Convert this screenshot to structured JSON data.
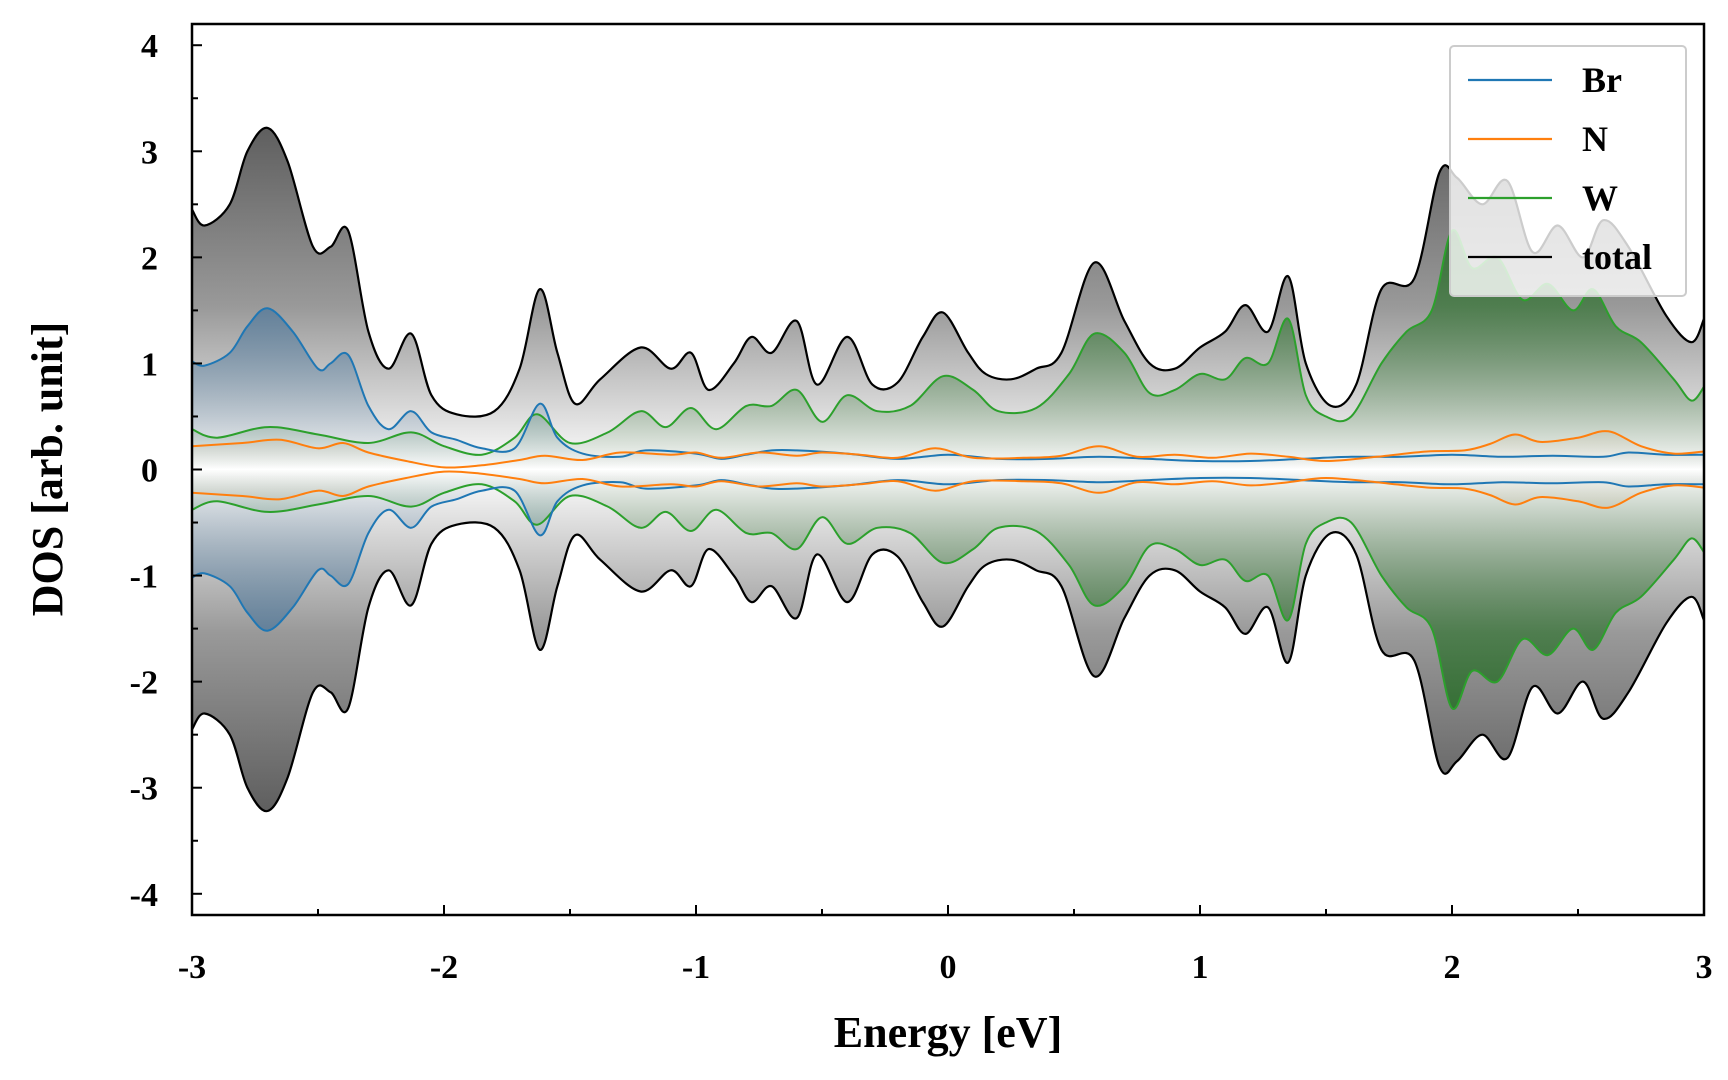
{
  "chart_data": {
    "type": "area",
    "title": "",
    "xlabel": "Energy [eV]",
    "ylabel": "DOS [arb. unit]",
    "xlim": [
      -3,
      3
    ],
    "ylim": [
      -4.2,
      4.2
    ],
    "x_ticks": [
      -3,
      -2,
      -1,
      0,
      1,
      2,
      3
    ],
    "x_tick_labels": [
      "-3",
      "-2",
      "-1",
      "0",
      "1",
      "2",
      "3"
    ],
    "y_ticks": [
      -4,
      -3,
      -2,
      -1,
      0,
      1,
      2,
      3,
      4
    ],
    "y_tick_labels": [
      "-4",
      "-3",
      "-2",
      "-1",
      "0",
      "1",
      "2",
      "3",
      "4"
    ],
    "legend_position": "top-right",
    "symmetric": true,
    "note": "Spin-down curve is the negative mirror of the spin-up curve.",
    "series": [
      {
        "name": "total",
        "color": "#000000",
        "fill": "grey",
        "points": [
          [
            -3.0,
            2.45
          ],
          [
            -2.95,
            2.3
          ],
          [
            -2.85,
            2.5
          ],
          [
            -2.78,
            3.0
          ],
          [
            -2.7,
            3.22
          ],
          [
            -2.62,
            2.9
          ],
          [
            -2.52,
            2.1
          ],
          [
            -2.45,
            2.1
          ],
          [
            -2.38,
            2.25
          ],
          [
            -2.3,
            1.3
          ],
          [
            -2.22,
            0.95
          ],
          [
            -2.13,
            1.28
          ],
          [
            -2.05,
            0.7
          ],
          [
            -1.95,
            0.52
          ],
          [
            -1.8,
            0.55
          ],
          [
            -1.7,
            0.95
          ],
          [
            -1.62,
            1.7
          ],
          [
            -1.55,
            1.1
          ],
          [
            -1.48,
            0.62
          ],
          [
            -1.38,
            0.85
          ],
          [
            -1.22,
            1.15
          ],
          [
            -1.1,
            0.95
          ],
          [
            -1.02,
            1.1
          ],
          [
            -0.95,
            0.75
          ],
          [
            -0.85,
            1.0
          ],
          [
            -0.78,
            1.25
          ],
          [
            -0.7,
            1.1
          ],
          [
            -0.6,
            1.4
          ],
          [
            -0.52,
            0.8
          ],
          [
            -0.4,
            1.25
          ],
          [
            -0.3,
            0.8
          ],
          [
            -0.2,
            0.82
          ],
          [
            -0.1,
            1.25
          ],
          [
            -0.02,
            1.48
          ],
          [
            0.08,
            1.1
          ],
          [
            0.15,
            0.9
          ],
          [
            0.25,
            0.85
          ],
          [
            0.35,
            0.95
          ],
          [
            0.45,
            1.1
          ],
          [
            0.58,
            1.95
          ],
          [
            0.7,
            1.4
          ],
          [
            0.8,
            1.0
          ],
          [
            0.9,
            0.95
          ],
          [
            1.0,
            1.15
          ],
          [
            1.1,
            1.3
          ],
          [
            1.18,
            1.55
          ],
          [
            1.27,
            1.3
          ],
          [
            1.35,
            1.82
          ],
          [
            1.42,
            1.0
          ],
          [
            1.52,
            0.6
          ],
          [
            1.62,
            0.8
          ],
          [
            1.72,
            1.7
          ],
          [
            1.85,
            1.8
          ],
          [
            1.95,
            2.8
          ],
          [
            2.02,
            2.75
          ],
          [
            2.12,
            2.5
          ],
          [
            2.22,
            2.72
          ],
          [
            2.32,
            2.05
          ],
          [
            2.42,
            2.3
          ],
          [
            2.52,
            2.0
          ],
          [
            2.6,
            2.35
          ],
          [
            2.7,
            2.1
          ],
          [
            2.85,
            1.45
          ],
          [
            2.95,
            1.2
          ],
          [
            3.0,
            1.42
          ]
        ]
      },
      {
        "name": "W",
        "color": "#2ca02c",
        "fill": "green",
        "points": [
          [
            -3.0,
            0.38
          ],
          [
            -2.9,
            0.3
          ],
          [
            -2.7,
            0.4
          ],
          [
            -2.5,
            0.33
          ],
          [
            -2.3,
            0.25
          ],
          [
            -2.13,
            0.35
          ],
          [
            -2.0,
            0.22
          ],
          [
            -1.85,
            0.14
          ],
          [
            -1.72,
            0.3
          ],
          [
            -1.63,
            0.52
          ],
          [
            -1.5,
            0.25
          ],
          [
            -1.35,
            0.35
          ],
          [
            -1.22,
            0.55
          ],
          [
            -1.12,
            0.4
          ],
          [
            -1.02,
            0.58
          ],
          [
            -0.92,
            0.38
          ],
          [
            -0.8,
            0.6
          ],
          [
            -0.7,
            0.6
          ],
          [
            -0.6,
            0.75
          ],
          [
            -0.5,
            0.45
          ],
          [
            -0.4,
            0.7
          ],
          [
            -0.28,
            0.55
          ],
          [
            -0.15,
            0.6
          ],
          [
            -0.02,
            0.88
          ],
          [
            0.1,
            0.75
          ],
          [
            0.2,
            0.55
          ],
          [
            0.35,
            0.58
          ],
          [
            0.48,
            0.9
          ],
          [
            0.58,
            1.28
          ],
          [
            0.7,
            1.1
          ],
          [
            0.8,
            0.72
          ],
          [
            0.9,
            0.75
          ],
          [
            1.0,
            0.9
          ],
          [
            1.1,
            0.85
          ],
          [
            1.18,
            1.05
          ],
          [
            1.27,
            1.0
          ],
          [
            1.35,
            1.42
          ],
          [
            1.42,
            0.7
          ],
          [
            1.5,
            0.5
          ],
          [
            1.6,
            0.5
          ],
          [
            1.72,
            1.0
          ],
          [
            1.82,
            1.3
          ],
          [
            1.92,
            1.5
          ],
          [
            2.0,
            2.25
          ],
          [
            2.08,
            1.9
          ],
          [
            2.18,
            2.0
          ],
          [
            2.28,
            1.6
          ],
          [
            2.38,
            1.75
          ],
          [
            2.48,
            1.5
          ],
          [
            2.56,
            1.7
          ],
          [
            2.65,
            1.35
          ],
          [
            2.75,
            1.2
          ],
          [
            2.88,
            0.85
          ],
          [
            2.95,
            0.65
          ],
          [
            3.0,
            0.78
          ]
        ]
      },
      {
        "name": "Br",
        "color": "#1f77b4",
        "fill": "blue",
        "points": [
          [
            -3.0,
            1.02
          ],
          [
            -2.95,
            0.98
          ],
          [
            -2.85,
            1.1
          ],
          [
            -2.78,
            1.35
          ],
          [
            -2.7,
            1.52
          ],
          [
            -2.6,
            1.3
          ],
          [
            -2.5,
            0.95
          ],
          [
            -2.45,
            1.0
          ],
          [
            -2.38,
            1.08
          ],
          [
            -2.3,
            0.6
          ],
          [
            -2.22,
            0.38
          ],
          [
            -2.13,
            0.55
          ],
          [
            -2.05,
            0.35
          ],
          [
            -1.95,
            0.28
          ],
          [
            -1.85,
            0.2
          ],
          [
            -1.72,
            0.2
          ],
          [
            -1.62,
            0.62
          ],
          [
            -1.55,
            0.3
          ],
          [
            -1.45,
            0.15
          ],
          [
            -1.3,
            0.12
          ],
          [
            -1.2,
            0.18
          ],
          [
            -1.0,
            0.15
          ],
          [
            -0.9,
            0.1
          ],
          [
            -0.8,
            0.14
          ],
          [
            -0.7,
            0.18
          ],
          [
            -0.6,
            0.18
          ],
          [
            -0.4,
            0.15
          ],
          [
            -0.2,
            0.1
          ],
          [
            0.0,
            0.14
          ],
          [
            0.2,
            0.1
          ],
          [
            0.4,
            0.1
          ],
          [
            0.6,
            0.12
          ],
          [
            0.8,
            0.1
          ],
          [
            1.0,
            0.08
          ],
          [
            1.2,
            0.08
          ],
          [
            1.4,
            0.1
          ],
          [
            1.6,
            0.12
          ],
          [
            1.8,
            0.12
          ],
          [
            2.0,
            0.14
          ],
          [
            2.2,
            0.12
          ],
          [
            2.4,
            0.13
          ],
          [
            2.6,
            0.12
          ],
          [
            2.7,
            0.16
          ],
          [
            2.85,
            0.14
          ],
          [
            3.0,
            0.14
          ]
        ]
      },
      {
        "name": "N",
        "color": "#ff7f0e",
        "fill": "tan",
        "points": [
          [
            -3.0,
            0.22
          ],
          [
            -2.8,
            0.25
          ],
          [
            -2.65,
            0.28
          ],
          [
            -2.5,
            0.2
          ],
          [
            -2.4,
            0.25
          ],
          [
            -2.3,
            0.16
          ],
          [
            -2.15,
            0.08
          ],
          [
            -2.0,
            0.02
          ],
          [
            -1.85,
            0.04
          ],
          [
            -1.7,
            0.09
          ],
          [
            -1.6,
            0.13
          ],
          [
            -1.45,
            0.09
          ],
          [
            -1.3,
            0.16
          ],
          [
            -1.1,
            0.14
          ],
          [
            -1.0,
            0.16
          ],
          [
            -0.9,
            0.11
          ],
          [
            -0.75,
            0.16
          ],
          [
            -0.6,
            0.13
          ],
          [
            -0.5,
            0.16
          ],
          [
            -0.35,
            0.14
          ],
          [
            -0.2,
            0.11
          ],
          [
            -0.05,
            0.2
          ],
          [
            0.1,
            0.11
          ],
          [
            0.3,
            0.11
          ],
          [
            0.45,
            0.13
          ],
          [
            0.6,
            0.22
          ],
          [
            0.75,
            0.12
          ],
          [
            0.9,
            0.14
          ],
          [
            1.05,
            0.11
          ],
          [
            1.2,
            0.15
          ],
          [
            1.35,
            0.12
          ],
          [
            1.5,
            0.08
          ],
          [
            1.7,
            0.12
          ],
          [
            1.9,
            0.17
          ],
          [
            2.05,
            0.18
          ],
          [
            2.15,
            0.24
          ],
          [
            2.25,
            0.33
          ],
          [
            2.35,
            0.26
          ],
          [
            2.5,
            0.3
          ],
          [
            2.62,
            0.36
          ],
          [
            2.75,
            0.22
          ],
          [
            2.88,
            0.15
          ],
          [
            3.0,
            0.17
          ]
        ]
      }
    ],
    "legend": [
      "Br",
      "N",
      "W",
      "total"
    ],
    "colors": {
      "Br": "#1f77b4",
      "N": "#ff7f0e",
      "W": "#2ca02c",
      "total": "#000000",
      "grey_fill": "#555555",
      "green_fill": "#1e6b1e",
      "blue_fill": "#3d6f9a",
      "tan_fill": "#b08d5f"
    }
  }
}
